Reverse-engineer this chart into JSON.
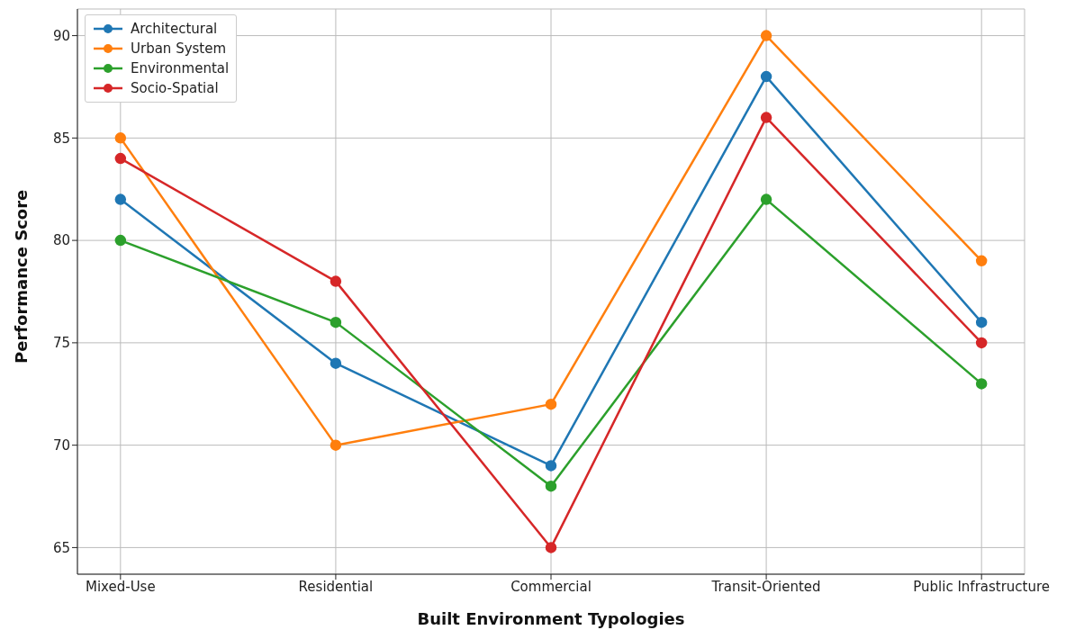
{
  "chart_data": {
    "type": "line",
    "xlabel": "Built Environment Typologies",
    "ylabel": "Performance Score",
    "categories": [
      "Mixed-Use",
      "Residential",
      "Commercial",
      "Transit-Oriented",
      "Public Infrastructure"
    ],
    "series": [
      {
        "name": "Architectural",
        "color": "#1f77b4",
        "values": [
          82,
          74,
          69,
          88,
          76
        ]
      },
      {
        "name": "Urban System",
        "color": "#ff7f0e",
        "values": [
          85,
          70,
          72,
          90,
          79
        ]
      },
      {
        "name": "Environmental",
        "color": "#2ca02c",
        "values": [
          80,
          76,
          68,
          82,
          73
        ]
      },
      {
        "name": "Socio-Spatial",
        "color": "#d62728",
        "values": [
          84,
          78,
          65,
          86,
          75
        ]
      }
    ],
    "ylim": [
      63.7,
      91.3
    ],
    "yticks": [
      65,
      70,
      75,
      80,
      85,
      90
    ],
    "grid": true,
    "legend": "top left",
    "marker": "circle",
    "line_style": "solid"
  }
}
